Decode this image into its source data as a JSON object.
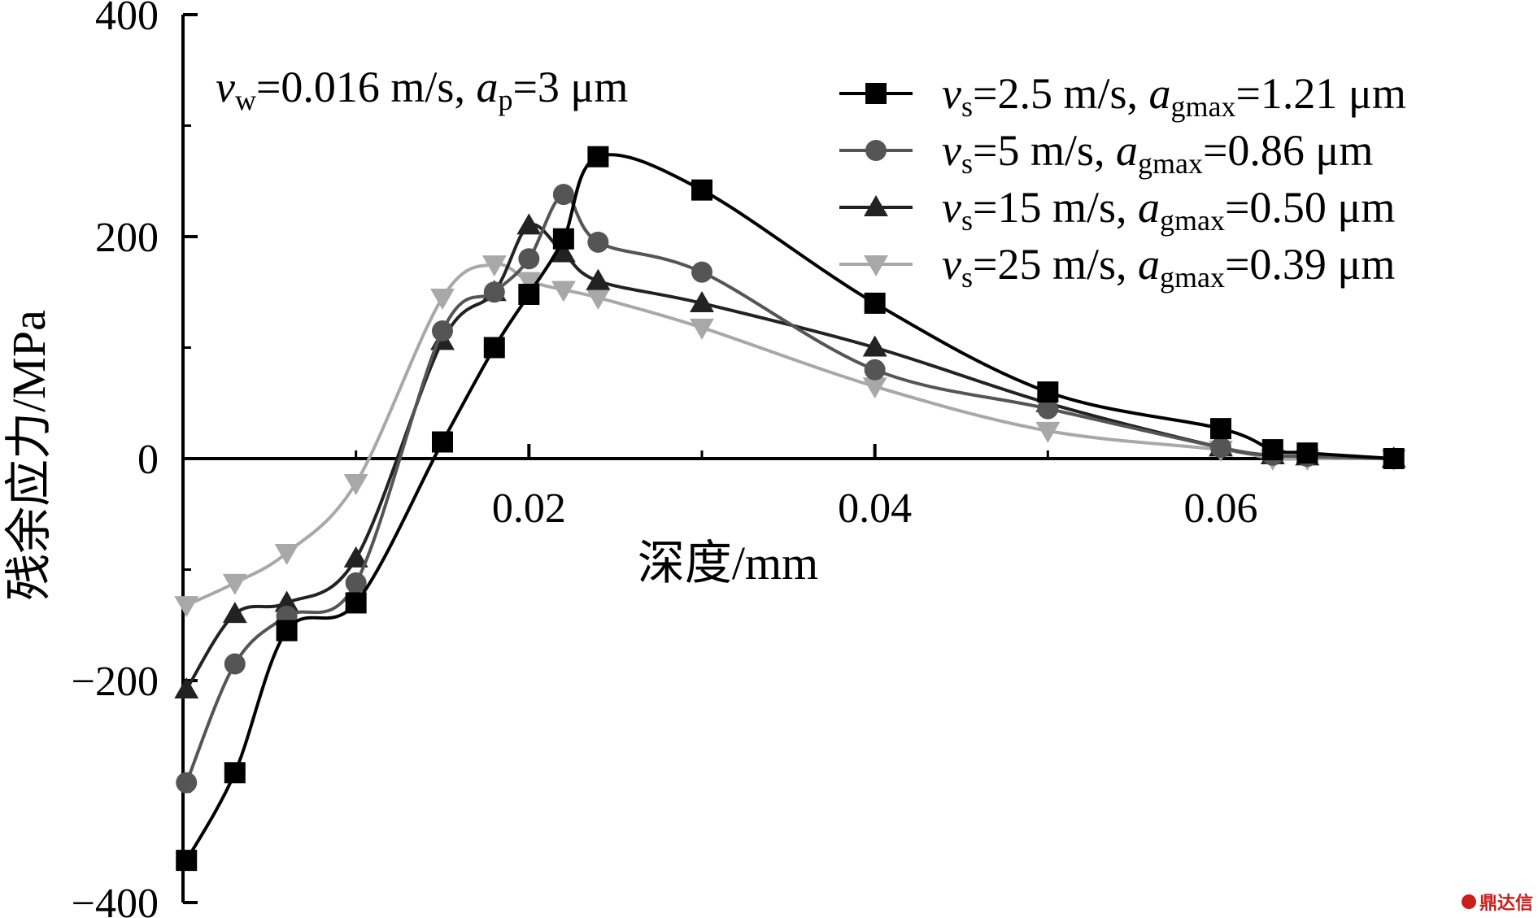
{
  "chart_data": {
    "type": "line",
    "xlabel": "深度/mm",
    "ylabel": "残余应力/MPa",
    "xlim": [
      0,
      0.075
    ],
    "ylim": [
      -400,
      400
    ],
    "xticks": [
      0.02,
      0.04,
      0.06
    ],
    "xtick_labels": [
      "0.02",
      "0.04",
      "0.06"
    ],
    "yticks": [
      -400,
      -200,
      0,
      200,
      400
    ],
    "ytick_labels": [
      "−400",
      "−200",
      "0",
      "200",
      "400"
    ],
    "grid": false,
    "legend_position": "top-right",
    "annotation": {
      "v": "v",
      "w": "w",
      "mid": "=0.016 m/s, ",
      "a": "a",
      "p": "p",
      "tail": "=3 μm"
    },
    "series": [
      {
        "legend": {
          "v": "v",
          "s": "s",
          "mid": "=2.5 m/s, ",
          "a": "a",
          "g": "gmax",
          "tail": "=1.21 μm"
        },
        "marker": "square",
        "color": "#000000",
        "points": [
          [
            0.0002,
            -362
          ],
          [
            0.003,
            -283
          ],
          [
            0.006,
            -155
          ],
          [
            0.01,
            -130
          ],
          [
            0.015,
            15
          ],
          [
            0.018,
            100
          ],
          [
            0.02,
            148
          ],
          [
            0.022,
            198
          ],
          [
            0.024,
            272
          ],
          [
            0.03,
            242
          ],
          [
            0.04,
            140
          ],
          [
            0.05,
            60
          ],
          [
            0.06,
            27
          ],
          [
            0.063,
            8
          ],
          [
            0.065,
            5
          ],
          [
            0.07,
            0
          ]
        ]
      },
      {
        "legend": {
          "v": "v",
          "s": "s",
          "mid": "=5 m/s, ",
          "a": "a",
          "g": "gmax",
          "tail": "=0.86 μm"
        },
        "marker": "circle",
        "color": "#555555",
        "points": [
          [
            0.0002,
            -292
          ],
          [
            0.003,
            -185
          ],
          [
            0.006,
            -142
          ],
          [
            0.01,
            -112
          ],
          [
            0.015,
            115
          ],
          [
            0.018,
            150
          ],
          [
            0.02,
            180
          ],
          [
            0.022,
            238
          ],
          [
            0.024,
            195
          ],
          [
            0.03,
            168
          ],
          [
            0.04,
            80
          ],
          [
            0.05,
            45
          ],
          [
            0.06,
            10
          ],
          [
            0.063,
            3
          ],
          [
            0.065,
            2
          ],
          [
            0.07,
            0
          ]
        ]
      },
      {
        "legend": {
          "v": "v",
          "s": "s",
          "mid": "=15  m/s, ",
          "a": "a",
          "g": "gmax",
          "tail": "=0.50 μm"
        },
        "marker": "triangle-up",
        "color": "#222222",
        "points": [
          [
            0.0002,
            -208
          ],
          [
            0.003,
            -140
          ],
          [
            0.006,
            -130
          ],
          [
            0.01,
            -90
          ],
          [
            0.015,
            106
          ],
          [
            0.018,
            150
          ],
          [
            0.02,
            210
          ],
          [
            0.022,
            185
          ],
          [
            0.024,
            160
          ],
          [
            0.03,
            140
          ],
          [
            0.04,
            100
          ],
          [
            0.05,
            50
          ],
          [
            0.06,
            10
          ],
          [
            0.063,
            3
          ],
          [
            0.065,
            2
          ],
          [
            0.07,
            0
          ]
        ]
      },
      {
        "legend": {
          "v": "v",
          "s": "s",
          "mid": "=25 m/s, ",
          "a": "a",
          "g": "gmax",
          "tail": "=0.39 μm"
        },
        "marker": "triangle-down",
        "color": "#a8a8a8",
        "points": [
          [
            0.0002,
            -132
          ],
          [
            0.003,
            -112
          ],
          [
            0.006,
            -85
          ],
          [
            0.01,
            -22
          ],
          [
            0.015,
            145
          ],
          [
            0.018,
            175
          ],
          [
            0.02,
            160
          ],
          [
            0.022,
            152
          ],
          [
            0.024,
            145
          ],
          [
            0.03,
            118
          ],
          [
            0.04,
            65
          ],
          [
            0.05,
            25
          ],
          [
            0.06,
            8
          ],
          [
            0.063,
            0
          ],
          [
            0.065,
            0
          ],
          [
            0.07,
            0
          ]
        ]
      }
    ]
  },
  "watermark": {
    "text": "鼎达信",
    "icon": "logo-badge-icon"
  }
}
